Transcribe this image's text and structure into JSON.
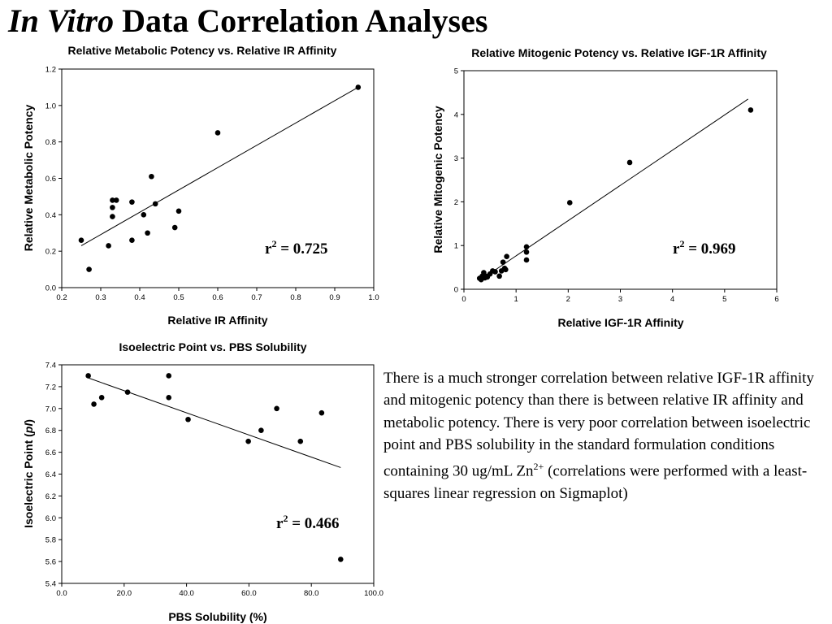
{
  "slide": {
    "title_italic": "In Vitro",
    "title_rest": " Data Correlation Analyses"
  },
  "summary": {
    "pre": "There is a much stronger correlation between relative IGF-1R affinity and mitogenic potency than there is between relative IR affinity and metabolic potency. There is very poor correlation between isoelectric point and PBS solubility in the standard formulation conditions containing 30 ug/mL Zn",
    "sup": "2+",
    "post": " (correlations were performed with a  least-squares linear regression on Sigmaplot)"
  },
  "chart_data": [
    {
      "id": "metabolic",
      "type": "scatter",
      "title": "Relative Metabolic Potency vs. Relative IR Affinity",
      "xlabel": "Relative IR Affinity",
      "ylabel": "Relative Metabolic Potency",
      "xlim": [
        0.2,
        1.0
      ],
      "ylim": [
        0.0,
        1.2
      ],
      "xticks": [
        0.2,
        0.3,
        0.4,
        0.5,
        0.6,
        0.7,
        0.8,
        0.9,
        1.0
      ],
      "yticks": [
        0.0,
        0.2,
        0.4,
        0.6,
        0.8,
        1.0,
        1.2
      ],
      "tick_decimals": 1,
      "points": [
        [
          0.25,
          0.26
        ],
        [
          0.27,
          0.1
        ],
        [
          0.32,
          0.23
        ],
        [
          0.33,
          0.48
        ],
        [
          0.33,
          0.44
        ],
        [
          0.33,
          0.39
        ],
        [
          0.34,
          0.48
        ],
        [
          0.38,
          0.47
        ],
        [
          0.38,
          0.26
        ],
        [
          0.41,
          0.4
        ],
        [
          0.42,
          0.3
        ],
        [
          0.43,
          0.61
        ],
        [
          0.44,
          0.46
        ],
        [
          0.49,
          0.33
        ],
        [
          0.5,
          0.42
        ],
        [
          0.6,
          0.85
        ],
        [
          0.96,
          1.1
        ]
      ],
      "fit": [
        [
          0.25,
          0.23
        ],
        [
          0.96,
          1.1
        ]
      ],
      "r2_label": "r",
      "r2_value": " = 0.725"
    },
    {
      "id": "mitogenic",
      "type": "scatter",
      "title": "Relative Mitogenic Potency vs. Relative IGF-1R Affinity",
      "xlabel": "Relative IGF-1R Affinity",
      "ylabel": "Relative Mitogenic Potency",
      "xlim": [
        0,
        6
      ],
      "ylim": [
        0,
        5
      ],
      "xticks": [
        0,
        1,
        2,
        3,
        4,
        5,
        6
      ],
      "yticks": [
        0,
        1,
        2,
        3,
        4,
        5
      ],
      "tick_decimals": 0,
      "points": [
        [
          0.3,
          0.25
        ],
        [
          0.33,
          0.22
        ],
        [
          0.35,
          0.3
        ],
        [
          0.38,
          0.38
        ],
        [
          0.4,
          0.26
        ],
        [
          0.42,
          0.3
        ],
        [
          0.45,
          0.28
        ],
        [
          0.5,
          0.35
        ],
        [
          0.55,
          0.42
        ],
        [
          0.6,
          0.4
        ],
        [
          0.68,
          0.3
        ],
        [
          0.72,
          0.42
        ],
        [
          0.75,
          0.62
        ],
        [
          0.78,
          0.48
        ],
        [
          0.8,
          0.45
        ],
        [
          0.82,
          0.75
        ],
        [
          1.2,
          0.97
        ],
        [
          1.2,
          0.85
        ],
        [
          1.2,
          0.67
        ],
        [
          2.03,
          1.98
        ],
        [
          3.18,
          2.9
        ],
        [
          5.5,
          4.1
        ]
      ],
      "fit": [
        [
          0.3,
          0.2
        ],
        [
          5.45,
          4.35
        ]
      ],
      "r2_label": "r",
      "r2_value": " = 0.969"
    },
    {
      "id": "isoelectric",
      "type": "scatter",
      "title": "Isoelectric Point vs. PBS Solubility",
      "xlabel": "PBS Solubility (%)",
      "ylabel": "Isoelectric Point (pI)",
      "ylabel_pre": "Isoelectric Point (",
      "ylabel_italic": "pI",
      "ylabel_post": ")",
      "xlim": [
        0,
        100
      ],
      "ylim": [
        5.4,
        7.4
      ],
      "xticks": [
        0,
        20,
        40,
        60,
        80,
        100
      ],
      "yticks": [
        5.4,
        5.6,
        5.8,
        6.0,
        6.2,
        6.4,
        6.6,
        6.8,
        7.0,
        7.2,
        7.4
      ],
      "tick_decimals": 1,
      "points": [
        [
          8.5,
          7.3
        ],
        [
          10.3,
          7.04
        ],
        [
          12.8,
          7.1
        ],
        [
          21.1,
          7.15
        ],
        [
          34.3,
          7.3
        ],
        [
          34.3,
          7.1
        ],
        [
          40.5,
          6.9
        ],
        [
          59.8,
          6.7
        ],
        [
          63.9,
          6.8
        ],
        [
          68.9,
          7.0
        ],
        [
          76.5,
          6.7
        ],
        [
          83.3,
          6.96
        ],
        [
          89.4,
          5.62
        ]
      ],
      "fit": [
        [
          8.5,
          7.28
        ],
        [
          89.4,
          6.46
        ]
      ],
      "r2_label": "r",
      "r2_value": " = 0.466"
    }
  ]
}
